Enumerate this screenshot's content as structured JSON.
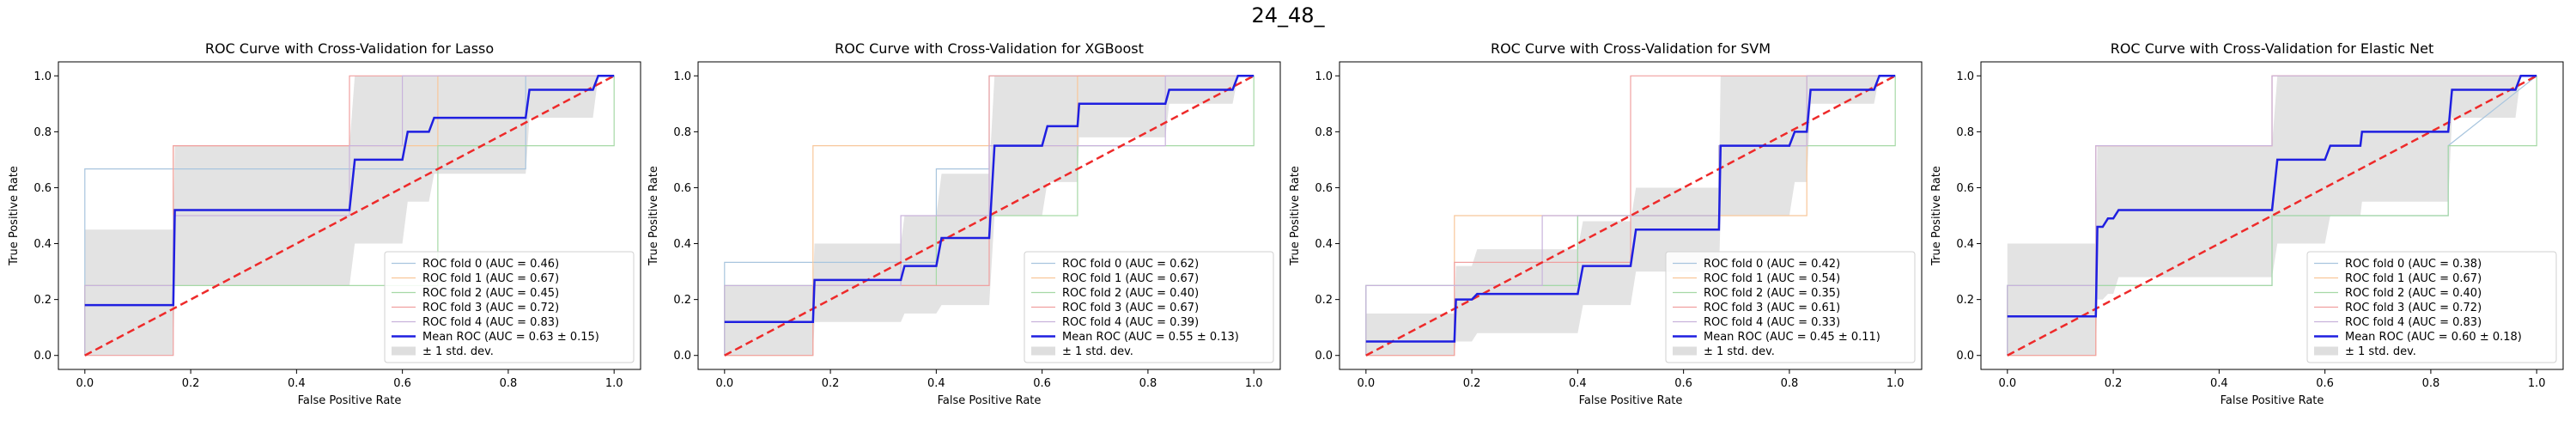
{
  "figure": {
    "suptitle": "24_48_"
  },
  "style": {
    "fold_colors": [
      "#a8c5de",
      "#f8c79a",
      "#a6d9a6",
      "#f0a0a0",
      "#c9b3dc"
    ],
    "mean_color": "#1f1fe0",
    "chance_color": "#ee2a2a",
    "band_color": "#c8c8c8"
  },
  "chart_data": [
    {
      "type": "line",
      "title": "ROC Curve with Cross-Validation for Lasso",
      "xlabel": "False Positive Rate",
      "ylabel": "True Positive Rate",
      "xlim": [
        -0.05,
        1.05
      ],
      "ylim": [
        -0.05,
        1.05
      ],
      "xticks": [
        "0.0",
        "0.2",
        "0.4",
        "0.6",
        "0.8",
        "1.0"
      ],
      "yticks": [
        "0.0",
        "0.2",
        "0.4",
        "0.6",
        "0.8",
        "1.0"
      ],
      "grid": false,
      "legend_position": "lower right",
      "folds": [
        {
          "name": "ROC fold 0 (AUC = 0.46)",
          "x": [
            0,
            0,
            0.167,
            0.167,
            0.5,
            0.5,
            0.833,
            0.833,
            1
          ],
          "y": [
            0,
            0.667,
            0.667,
            0.667,
            0.667,
            0.667,
            0.667,
            1,
            1
          ]
        },
        {
          "name": "ROC fold 1 (AUC = 0.67)",
          "x": [
            0,
            0,
            0.167,
            0.167,
            0.5,
            0.5,
            0.667,
            0.667,
            1
          ],
          "y": [
            0,
            0.25,
            0.25,
            0.75,
            0.75,
            0.75,
            0.75,
            1,
            1
          ]
        },
        {
          "name": "ROC fold 2 (AUC = 0.45)",
          "x": [
            0,
            0,
            0.167,
            0.5,
            0.667,
            0.667,
            0.833,
            1,
            1
          ],
          "y": [
            0,
            0.25,
            0.25,
            0.25,
            0.25,
            0.75,
            0.75,
            0.75,
            1
          ]
        },
        {
          "name": "ROC fold 3 (AUC = 0.72)",
          "x": [
            0,
            0.167,
            0.167,
            0.5,
            0.5,
            1
          ],
          "y": [
            0,
            0,
            0.75,
            0.75,
            1,
            1
          ]
        },
        {
          "name": "ROC fold 4 (AUC = 0.83)",
          "x": [
            0,
            0,
            0.167,
            0.167,
            0.5,
            0.5,
            0.6,
            0.6,
            0.833,
            0.833,
            1
          ],
          "y": [
            0,
            0.25,
            0.25,
            0.5,
            0.5,
            0.75,
            0.75,
            1,
            1,
            1,
            1
          ]
        }
      ],
      "mean": {
        "name": "Mean ROC (AUC = 0.63 ± 0.15)",
        "x": [
          0,
          0.167,
          0.17,
          0.5,
          0.51,
          0.6,
          0.61,
          0.65,
          0.66,
          0.833,
          0.84,
          0.96,
          0.97,
          1
        ],
        "y": [
          0.18,
          0.18,
          0.52,
          0.52,
          0.7,
          0.7,
          0.8,
          0.8,
          0.85,
          0.85,
          0.95,
          0.95,
          1,
          1
        ]
      },
      "band": {
        "name": "± 1 std. dev.",
        "x": [
          0,
          0.167,
          0.17,
          0.5,
          0.51,
          0.6,
          0.61,
          0.65,
          0.66,
          0.833,
          0.84,
          0.96,
          0.97,
          1
        ],
        "upper": [
          0.45,
          0.45,
          0.75,
          0.75,
          1,
          1,
          1,
          1,
          1,
          1,
          1,
          1,
          1,
          1
        ],
        "lower": [
          0,
          0,
          0.25,
          0.25,
          0.4,
          0.4,
          0.55,
          0.55,
          0.65,
          0.65,
          0.85,
          0.85,
          1,
          1
        ]
      }
    },
    {
      "type": "line",
      "title": "ROC Curve with Cross-Validation for XGBoost",
      "xlabel": "False Positive Rate",
      "ylabel": "True Positive Rate",
      "xlim": [
        -0.05,
        1.05
      ],
      "ylim": [
        -0.05,
        1.05
      ],
      "xticks": [
        "0.0",
        "0.2",
        "0.4",
        "0.6",
        "0.8",
        "1.0"
      ],
      "yticks": [
        "0.0",
        "0.2",
        "0.4",
        "0.6",
        "0.8",
        "1.0"
      ],
      "grid": false,
      "legend_position": "lower right",
      "folds": [
        {
          "name": "ROC fold 0 (AUC = 0.62)",
          "x": [
            0,
            0,
            0.4,
            0.4,
            0.5,
            0.5,
            1
          ],
          "y": [
            0,
            0.333,
            0.333,
            0.667,
            0.667,
            1,
            1
          ]
        },
        {
          "name": "ROC fold 1 (AUC = 0.67)",
          "x": [
            0,
            0.167,
            0.167,
            0.667,
            0.667,
            1
          ],
          "y": [
            0,
            0,
            0.75,
            0.75,
            1,
            1
          ]
        },
        {
          "name": "ROC fold 2 (AUC = 0.40)",
          "x": [
            0,
            0,
            0.167,
            0.167,
            0.4,
            0.4,
            0.667,
            0.667,
            1,
            1
          ],
          "y": [
            0,
            0.25,
            0.25,
            0.25,
            0.25,
            0.5,
            0.5,
            0.75,
            0.75,
            1
          ]
        },
        {
          "name": "ROC fold 3 (AUC = 0.67)",
          "x": [
            0,
            0.167,
            0.167,
            0.5,
            0.5,
            1
          ],
          "y": [
            0,
            0,
            0.25,
            0.25,
            1,
            1
          ]
        },
        {
          "name": "ROC fold 4 (AUC = 0.39)",
          "x": [
            0,
            0,
            0.333,
            0.333,
            0.5,
            0.5,
            0.833,
            0.833,
            1
          ],
          "y": [
            0,
            0.25,
            0.25,
            0.5,
            0.5,
            0.75,
            0.75,
            1,
            1
          ]
        }
      ],
      "mean": {
        "name": "Mean ROC (AUC = 0.55 ± 0.13)",
        "x": [
          0,
          0.167,
          0.17,
          0.333,
          0.34,
          0.4,
          0.41,
          0.5,
          0.51,
          0.6,
          0.61,
          0.667,
          0.67,
          0.833,
          0.84,
          0.96,
          0.97,
          1
        ],
        "y": [
          0.12,
          0.12,
          0.27,
          0.27,
          0.32,
          0.32,
          0.42,
          0.42,
          0.75,
          0.75,
          0.82,
          0.82,
          0.9,
          0.9,
          0.95,
          0.95,
          1,
          1
        ]
      },
      "band": {
        "name": "± 1 std. dev.",
        "x": [
          0,
          0.167,
          0.17,
          0.333,
          0.34,
          0.4,
          0.41,
          0.5,
          0.51,
          0.6,
          0.61,
          0.667,
          0.67,
          0.833,
          0.84,
          0.96,
          0.97,
          1
        ],
        "upper": [
          0.25,
          0.25,
          0.4,
          0.4,
          0.5,
          0.5,
          0.65,
          0.65,
          1,
          1,
          1,
          1,
          1,
          1,
          1,
          1,
          1,
          1
        ],
        "lower": [
          0,
          0,
          0.12,
          0.12,
          0.15,
          0.15,
          0.18,
          0.18,
          0.5,
          0.5,
          0.62,
          0.62,
          0.78,
          0.78,
          0.9,
          0.9,
          1,
          1
        ]
      }
    },
    {
      "type": "line",
      "title": "ROC Curve with Cross-Validation for SVM",
      "xlabel": "False Positive Rate",
      "ylabel": "True Positive Rate",
      "xlim": [
        -0.05,
        1.05
      ],
      "ylim": [
        -0.05,
        1.05
      ],
      "xticks": [
        "0.0",
        "0.2",
        "0.4",
        "0.6",
        "0.8",
        "1.0"
      ],
      "yticks": [
        "0.0",
        "0.2",
        "0.4",
        "0.6",
        "0.8",
        "1.0"
      ],
      "grid": false,
      "legend_position": "lower right",
      "folds": [
        {
          "name": "ROC fold 0 (AUC = 0.42)",
          "x": [
            0,
            0,
            0.167,
            0.167,
            0.4,
            0.4,
            0.667,
            0.667,
            0.833,
            0.833,
            1
          ],
          "y": [
            0,
            0.25,
            0.25,
            0.25,
            0.25,
            0.5,
            0.5,
            0.75,
            0.75,
            1,
            1
          ]
        },
        {
          "name": "ROC fold 1 (AUC = 0.54)",
          "x": [
            0,
            0.167,
            0.167,
            0.833,
            0.833,
            1
          ],
          "y": [
            0,
            0,
            0.5,
            0.5,
            1,
            1
          ]
        },
        {
          "name": "ROC fold 2 (AUC = 0.35)",
          "x": [
            0,
            0,
            0.167,
            0.167,
            0.4,
            0.4,
            0.667,
            0.667,
            1,
            1
          ],
          "y": [
            0,
            0.25,
            0.25,
            0.25,
            0.25,
            0.5,
            0.5,
            0.75,
            0.75,
            1
          ]
        },
        {
          "name": "ROC fold 3 (AUC = 0.61)",
          "x": [
            0,
            0.167,
            0.167,
            0.5,
            0.5,
            0.833,
            0.833,
            1
          ],
          "y": [
            0,
            0,
            0.333,
            0.333,
            1,
            1,
            1,
            1
          ]
        },
        {
          "name": "ROC fold 4 (AUC = 0.33)",
          "x": [
            0,
            0,
            0.333,
            0.333,
            0.667,
            0.667,
            0.833,
            0.833,
            1
          ],
          "y": [
            0,
            0.25,
            0.25,
            0.5,
            0.5,
            0.75,
            0.75,
            1,
            1
          ]
        }
      ],
      "mean": {
        "name": "Mean ROC (AUC = 0.45 ± 0.11)",
        "x": [
          0,
          0.167,
          0.17,
          0.2,
          0.21,
          0.4,
          0.41,
          0.5,
          0.51,
          0.667,
          0.67,
          0.8,
          0.81,
          0.833,
          0.84,
          0.96,
          0.97,
          1
        ],
        "y": [
          0.05,
          0.05,
          0.2,
          0.2,
          0.22,
          0.22,
          0.32,
          0.32,
          0.45,
          0.45,
          0.75,
          0.75,
          0.8,
          0.8,
          0.95,
          0.95,
          1,
          1
        ]
      },
      "band": {
        "name": "± 1 std. dev.",
        "x": [
          0,
          0.167,
          0.17,
          0.2,
          0.21,
          0.4,
          0.41,
          0.5,
          0.51,
          0.667,
          0.67,
          0.8,
          0.81,
          0.833,
          0.84,
          0.96,
          0.97,
          1
        ],
        "upper": [
          0.15,
          0.15,
          0.32,
          0.32,
          0.38,
          0.38,
          0.48,
          0.48,
          0.6,
          0.6,
          1,
          1,
          1,
          1,
          1,
          1,
          1,
          1
        ],
        "lower": [
          0,
          0,
          0.05,
          0.05,
          0.08,
          0.08,
          0.18,
          0.18,
          0.3,
          0.3,
          0.5,
          0.5,
          0.62,
          0.62,
          0.9,
          0.9,
          1,
          1
        ]
      }
    },
    {
      "type": "line",
      "title": "ROC Curve with Cross-Validation for Elastic Net",
      "xlabel": "False Positive Rate",
      "ylabel": "True Positive Rate",
      "xlim": [
        -0.05,
        1.05
      ],
      "ylim": [
        -0.05,
        1.05
      ],
      "xticks": [
        "0.0",
        "0.2",
        "0.4",
        "0.6",
        "0.8",
        "1.0"
      ],
      "yticks": [
        "0.0",
        "0.2",
        "0.4",
        "0.6",
        "0.8",
        "1.0"
      ],
      "grid": false,
      "legend_position": "lower right",
      "folds": [
        {
          "name": "ROC fold 0 (AUC = 0.38)",
          "x": [
            0,
            0,
            0.167,
            0.167,
            0.5,
            0.5,
            0.833,
            0.833,
            1
          ],
          "y": [
            0,
            0.25,
            0.25,
            0.25,
            0.25,
            0.5,
            0.5,
            0.75,
            1
          ]
        },
        {
          "name": "ROC fold 1 (AUC = 0.67)",
          "x": [
            0,
            0.167,
            0.167,
            0.5,
            0.5,
            1
          ],
          "y": [
            0,
            0,
            0.75,
            0.75,
            1,
            1
          ]
        },
        {
          "name": "ROC fold 2 (AUC = 0.40)",
          "x": [
            0,
            0,
            0.167,
            0.167,
            0.5,
            0.5,
            0.833,
            0.833,
            1,
            1
          ],
          "y": [
            0,
            0.25,
            0.25,
            0.25,
            0.25,
            0.5,
            0.5,
            0.75,
            0.75,
            1
          ]
        },
        {
          "name": "ROC fold 3 (AUC = 0.72)",
          "x": [
            0,
            0.167,
            0.167,
            0.5,
            0.5,
            1
          ],
          "y": [
            0,
            0,
            0.75,
            0.75,
            1,
            1
          ]
        },
        {
          "name": "ROC fold 4 (AUC = 0.83)",
          "x": [
            0,
            0,
            0.167,
            0.167,
            0.5,
            0.5,
            0.833,
            0.833,
            1
          ],
          "y": [
            0,
            0.25,
            0.25,
            0.75,
            0.75,
            1,
            1,
            1,
            1
          ]
        }
      ],
      "mean": {
        "name": "Mean ROC (AUC = 0.60 ± 0.18)",
        "x": [
          0,
          0.167,
          0.17,
          0.18,
          0.19,
          0.2,
          0.21,
          0.5,
          0.51,
          0.6,
          0.61,
          0.667,
          0.67,
          0.833,
          0.84,
          0.96,
          0.97,
          1
        ],
        "y": [
          0.14,
          0.14,
          0.46,
          0.46,
          0.49,
          0.49,
          0.52,
          0.52,
          0.7,
          0.7,
          0.75,
          0.75,
          0.8,
          0.8,
          0.95,
          0.95,
          1,
          1
        ]
      },
      "band": {
        "name": "± 1 std. dev.",
        "x": [
          0,
          0.167,
          0.17,
          0.18,
          0.19,
          0.2,
          0.21,
          0.5,
          0.51,
          0.6,
          0.61,
          0.667,
          0.67,
          0.833,
          0.84,
          0.96,
          0.97,
          1
        ],
        "upper": [
          0.4,
          0.4,
          0.75,
          0.75,
          0.75,
          0.75,
          0.75,
          0.75,
          1,
          1,
          1,
          1,
          1,
          1,
          1,
          1,
          1,
          1
        ],
        "lower": [
          0,
          0,
          0.2,
          0.2,
          0.22,
          0.22,
          0.28,
          0.28,
          0.4,
          0.4,
          0.5,
          0.5,
          0.55,
          0.55,
          0.85,
          0.85,
          1,
          1
        ]
      }
    }
  ]
}
